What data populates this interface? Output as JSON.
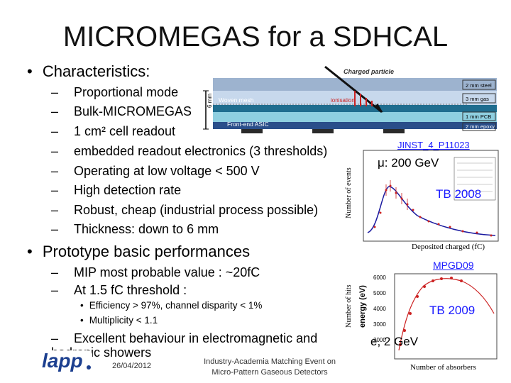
{
  "slide": {
    "title": "MICROMEGAS for a SDHCAL",
    "characteristics_heading": "Characteristics:",
    "characteristics": [
      "Proportional mode",
      "Bulk-MICROMEGAS",
      "1 cm² cell readout",
      "embedded readout electronics (3 thresholds)",
      "Operating at low voltage < 500 V",
      "High detection rate",
      "Robust, cheap (industrial process possible)",
      "Thickness: down to 6 mm"
    ],
    "performance_heading": "Prototype basic performances",
    "performance": {
      "mip": "MIP most probable value : ~20fC",
      "threshold": "At 1.5 fC threshold :",
      "sub": [
        "Efficiency > 97%, channel disparity < 1%",
        "Multiplicity < 1.1"
      ],
      "showers": "Excellent behaviour in electromagnetic and hadronic showers"
    },
    "dash": "–",
    "bullet": "•",
    "footer": {
      "date": "26/04/2012",
      "event_line1": "Industry-Academia Matching Event on",
      "event_line2": "Micro-Pattern Gaseous Detectors",
      "logo_text": "lapp"
    }
  },
  "diagram": {
    "charged_particle": "Charged particle",
    "ionisation": "ionisation",
    "woven_mesh": "Woven mesh",
    "frontend_asic": "Front-end ASIC",
    "thickness": "6 mm",
    "layers": [
      "2 mm steel",
      "3 mm gas",
      "1 mm PCB",
      "2 mm epoxy"
    ]
  },
  "plot1": {
    "ref": "JINST_4_P11023",
    "particle": "μ: 200 GeV",
    "year": "TB 2008",
    "ylabel": "Number of events",
    "xlabel": "Deposited charged (fC)"
  },
  "plot2": {
    "ref": "MPGD09",
    "year": "TB 2009",
    "particle": "e, 2 GeV",
    "ylabel": "Number of hits",
    "xlabel": "Number of absorbers",
    "inner_ylabel": "energy (eV)",
    "yticks": [
      "6000",
      "5000",
      "4000",
      "3000",
      "2000"
    ]
  },
  "colors": {
    "accent_blue": "#1a1aff",
    "ion_red": "#cc2222",
    "gas": "#c7d8ec",
    "steel": "#8fa6c2"
  }
}
